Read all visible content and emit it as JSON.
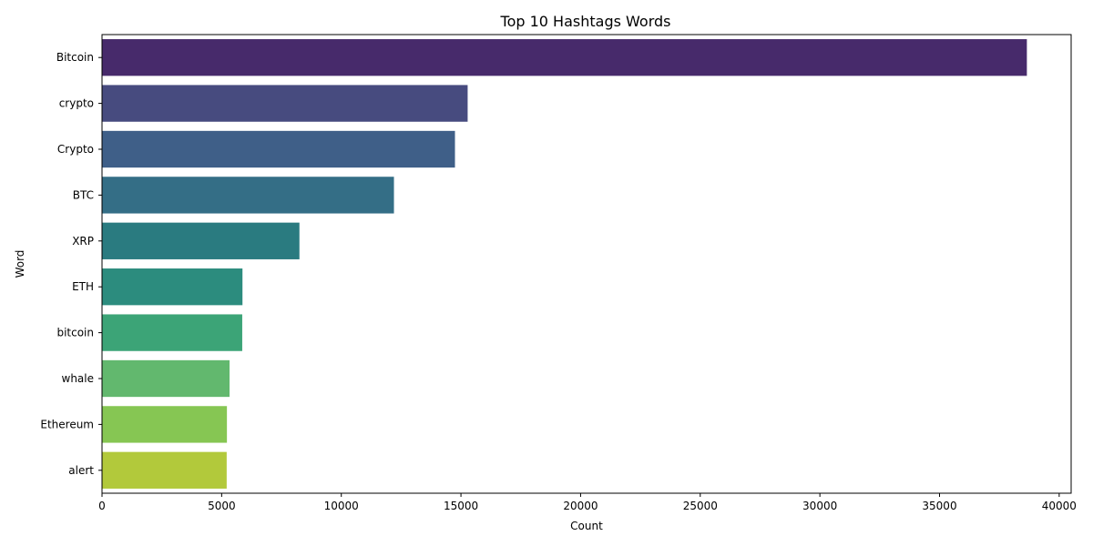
{
  "chart_data": {
    "type": "bar",
    "orientation": "horizontal",
    "title": "Top 10 Hashtags Words",
    "xlabel": "Count",
    "ylabel": "Word",
    "categories": [
      "Bitcoin",
      "crypto",
      "Crypto",
      "BTC",
      "XRP",
      "ETH",
      "bitcoin",
      "whale",
      "Ethereum",
      "alert"
    ],
    "values": [
      38650,
      15280,
      14750,
      12200,
      8250,
      5870,
      5860,
      5330,
      5220,
      5210
    ],
    "xlim": [
      0,
      40500
    ],
    "xticks": [
      0,
      5000,
      10000,
      15000,
      20000,
      25000,
      30000,
      35000,
      40000
    ],
    "grid": false,
    "legend": "none",
    "colors": [
      "#472a6b",
      "#474b7f",
      "#3f5f88",
      "#346e86",
      "#2a7b80",
      "#2c8c7e",
      "#3ca477",
      "#62b86e",
      "#86c653",
      "#b2c93b"
    ]
  }
}
